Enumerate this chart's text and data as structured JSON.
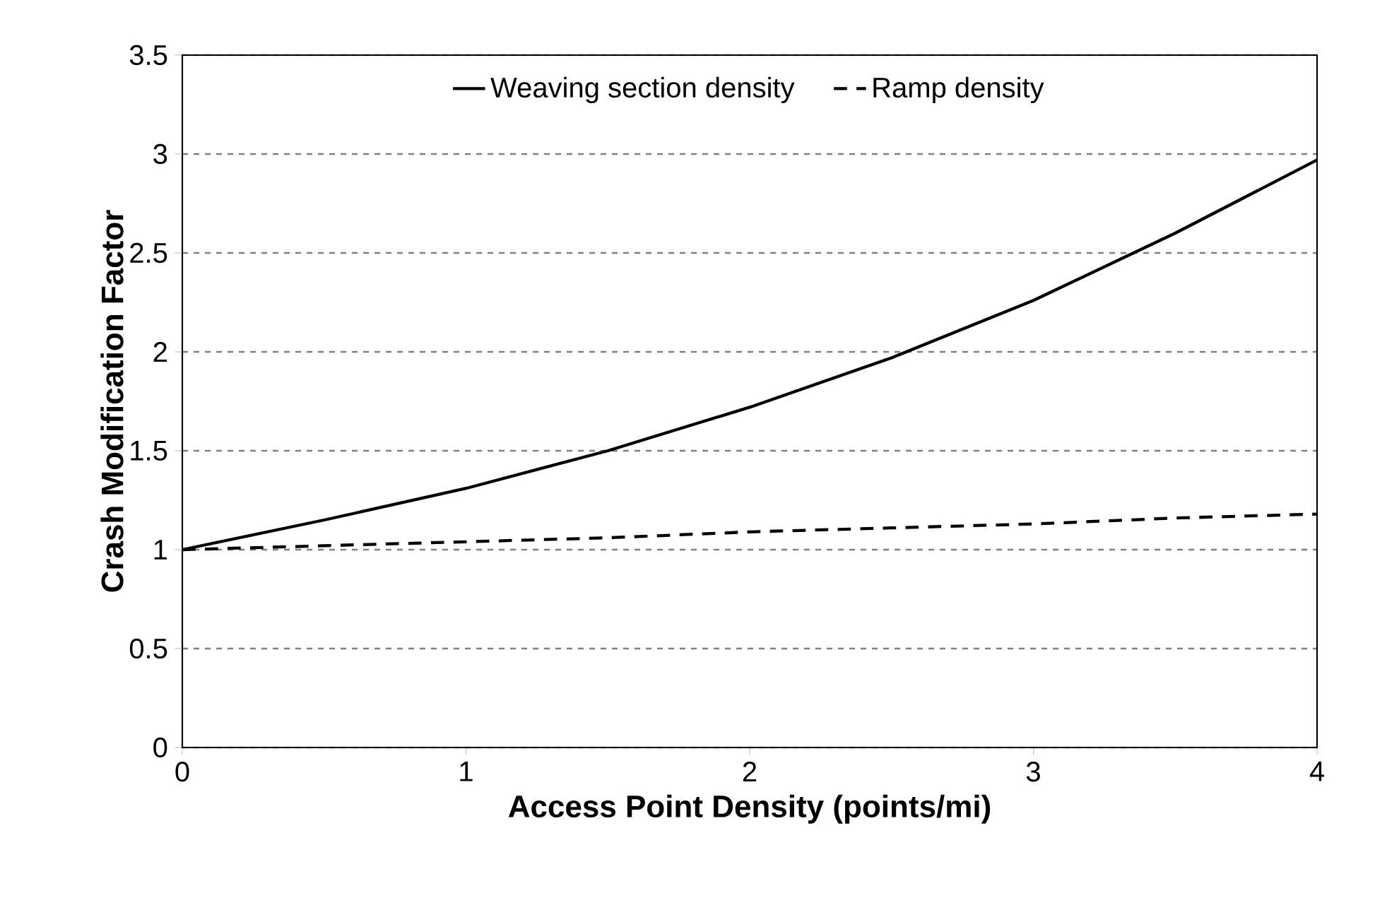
{
  "chart_data": {
    "type": "line",
    "xlabel": "Access Point Density (points/mi)",
    "ylabel": "Crash Modification Factor",
    "x": [
      0,
      0.5,
      1,
      1.5,
      2,
      2.5,
      3,
      3.5,
      4
    ],
    "series": [
      {
        "name": "Weaving section density",
        "color": "#000000",
        "line_style": "solid",
        "values": [
          1.0,
          1.15,
          1.31,
          1.5,
          1.72,
          1.97,
          2.26,
          2.6,
          2.97
        ]
      },
      {
        "name": "Ramp density",
        "color": "#000000",
        "line_style": "dashed",
        "values": [
          1.0,
          1.02,
          1.04,
          1.06,
          1.09,
          1.11,
          1.13,
          1.16,
          1.18
        ]
      }
    ],
    "xlim": [
      0,
      4
    ],
    "ylim": [
      0,
      3.5
    ],
    "xticks": [
      0,
      1,
      2,
      3,
      4
    ],
    "yticks": [
      0,
      0.5,
      1,
      1.5,
      2,
      2.5,
      3,
      3.5
    ],
    "grid": "y",
    "legend": "top",
    "marker": "none"
  }
}
